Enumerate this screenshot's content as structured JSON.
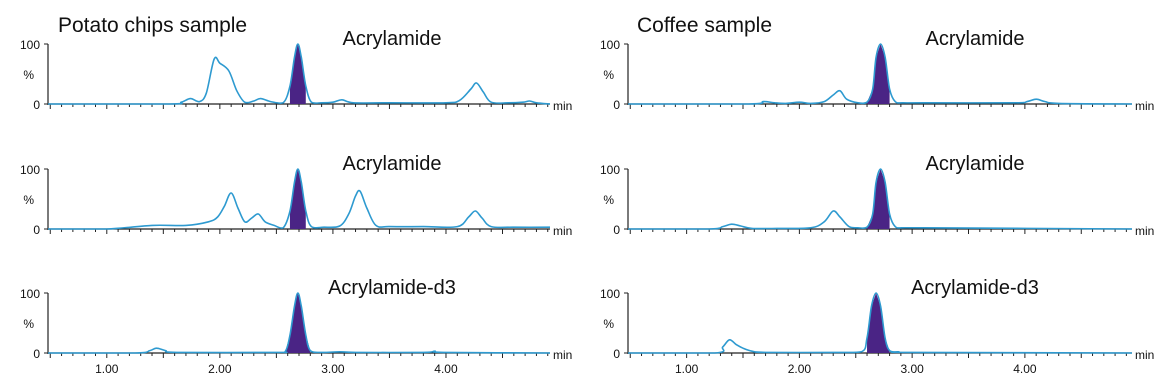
{
  "colors": {
    "trace": "#2e9ad0",
    "peak_fill": "#4a2485",
    "axis": "#222222",
    "text": "#111111"
  },
  "column_titles": [
    "Potato chips sample",
    "Coffee sample"
  ],
  "chart_data": [
    {
      "type": "line",
      "panel": "potato-1",
      "title": "Potato chips sample",
      "label": "Acrylamide",
      "xlabel": "min",
      "ylabel": "%",
      "xlim": [
        0.48,
        4.92
      ],
      "ylim": [
        0,
        100
      ],
      "yticks": [
        0,
        100
      ],
      "xtick_labels": [],
      "grid": false,
      "shaded_peak": [
        2.58,
        2.8
      ],
      "series": [
        {
          "x": [
            0.48,
            1.55,
            1.66,
            1.74,
            1.82,
            1.88,
            1.95,
            2.0,
            2.08,
            2.15,
            2.22,
            2.3,
            2.36,
            2.45,
            2.56,
            2.62,
            2.66,
            2.69,
            2.72,
            2.76,
            2.81,
            2.9,
            3.0,
            3.08,
            3.18,
            3.5,
            4.0,
            4.12,
            4.22,
            4.27,
            4.33,
            4.4,
            4.55,
            4.68,
            4.74,
            4.8,
            4.92
          ],
          "y": [
            0,
            0,
            3,
            9,
            4,
            18,
            75,
            68,
            55,
            22,
            3,
            5,
            9,
            4,
            2,
            30,
            78,
            100,
            78,
            30,
            3,
            2,
            3,
            7,
            2,
            2,
            2,
            6,
            25,
            35,
            20,
            3,
            2,
            3,
            5,
            2,
            0
          ]
        }
      ]
    },
    {
      "type": "line",
      "panel": "potato-2",
      "label": "Acrylamide",
      "xlabel": "min",
      "ylabel": "%",
      "xlim": [
        0.48,
        4.92
      ],
      "ylim": [
        0,
        100
      ],
      "yticks": [
        0,
        100
      ],
      "xtick_labels": [],
      "grid": false,
      "shaded_peak": [
        2.58,
        2.8
      ],
      "series": [
        {
          "x": [
            0.48,
            1.0,
            1.4,
            1.7,
            1.9,
            1.98,
            2.04,
            2.1,
            2.16,
            2.22,
            2.28,
            2.34,
            2.4,
            2.48,
            2.56,
            2.62,
            2.66,
            2.69,
            2.72,
            2.76,
            2.81,
            2.92,
            3.06,
            3.14,
            3.2,
            3.24,
            3.3,
            3.38,
            3.5,
            3.8,
            4.1,
            4.2,
            4.26,
            4.32,
            4.4,
            4.6,
            4.92
          ],
          "y": [
            0,
            0,
            6,
            6,
            12,
            20,
            38,
            60,
            35,
            12,
            18,
            25,
            12,
            6,
            2,
            30,
            78,
            100,
            78,
            30,
            4,
            3,
            5,
            25,
            55,
            63,
            35,
            6,
            4,
            4,
            4,
            20,
            30,
            18,
            4,
            3,
            3
          ]
        }
      ]
    },
    {
      "type": "line",
      "panel": "potato-3",
      "label": "Acrylamide-d3",
      "xlabel": "min",
      "ylabel": "%",
      "xlim": [
        0.48,
        4.92
      ],
      "ylim": [
        0,
        100
      ],
      "yticks": [
        0,
        100
      ],
      "xtick_labels": [
        "1.00",
        "2.00",
        "3.00",
        "4.00"
      ],
      "grid": false,
      "shaded_peak": [
        2.58,
        2.8
      ],
      "series": [
        {
          "x": [
            0.48,
            1.25,
            1.38,
            1.44,
            1.52,
            1.62,
            2.5,
            2.58,
            2.62,
            2.66,
            2.69,
            2.72,
            2.76,
            2.8,
            2.9,
            3.06,
            3.2,
            3.8,
            3.9,
            3.98,
            4.92
          ],
          "y": [
            0,
            0,
            4,
            8,
            4,
            1,
            1,
            3,
            30,
            78,
            100,
            78,
            30,
            4,
            1,
            2,
            1,
            1,
            3,
            1,
            0
          ]
        }
      ]
    },
    {
      "type": "line",
      "panel": "coffee-1",
      "title": "Coffee sample",
      "label": "Acrylamide",
      "xlabel": "min",
      "ylabel": "%",
      "xlim": [
        0.48,
        4.95
      ],
      "ylim": [
        0,
        100
      ],
      "yticks": [
        0,
        100
      ],
      "xtick_labels": [],
      "grid": false,
      "shaded_peak": [
        2.6,
        2.82
      ],
      "series": [
        {
          "x": [
            0.48,
            1.55,
            1.68,
            1.78,
            1.88,
            2.0,
            2.1,
            2.22,
            2.3,
            2.36,
            2.42,
            2.52,
            2.6,
            2.65,
            2.68,
            2.72,
            2.76,
            2.8,
            2.85,
            2.92,
            3.1,
            3.9,
            4.02,
            4.1,
            4.18,
            4.3,
            4.95
          ],
          "y": [
            0,
            0,
            4,
            2,
            1,
            3,
            1,
            4,
            15,
            22,
            8,
            2,
            3,
            25,
            78,
            100,
            78,
            25,
            4,
            2,
            2,
            2,
            4,
            8,
            4,
            1,
            0
          ]
        }
      ]
    },
    {
      "type": "line",
      "panel": "coffee-2",
      "label": "Acrylamide",
      "xlabel": "min",
      "ylabel": "%",
      "xlim": [
        0.48,
        4.95
      ],
      "ylim": [
        0,
        100
      ],
      "yticks": [
        0,
        100
      ],
      "xtick_labels": [],
      "grid": false,
      "shaded_peak": [
        2.6,
        2.82
      ],
      "series": [
        {
          "x": [
            0.48,
            1.2,
            1.32,
            1.4,
            1.48,
            1.58,
            1.8,
            2.1,
            2.22,
            2.3,
            2.36,
            2.44,
            2.52,
            2.6,
            2.65,
            2.68,
            2.72,
            2.76,
            2.8,
            2.85,
            2.92,
            3.1,
            4.95
          ],
          "y": [
            0,
            0,
            4,
            8,
            5,
            1,
            1,
            2,
            12,
            30,
            20,
            4,
            2,
            3,
            25,
            78,
            100,
            78,
            25,
            4,
            2,
            2,
            0
          ]
        }
      ]
    },
    {
      "type": "line",
      "panel": "coffee-3",
      "label": "Acrylamide-d3",
      "xlabel": "min",
      "ylabel": "%",
      "xlim": [
        0.48,
        4.95
      ],
      "ylim": [
        0,
        100
      ],
      "yticks": [
        0,
        100
      ],
      "xtick_labels": [
        "1.00",
        "2.00",
        "3.00",
        "4.00"
      ],
      "grid": false,
      "shaded_peak": [
        2.58,
        2.8
      ],
      "series": [
        {
          "x": [
            0.48,
            1.25,
            1.32,
            1.38,
            1.44,
            1.5,
            1.58,
            1.7,
            2.3,
            2.55,
            2.6,
            2.64,
            2.68,
            2.72,
            2.76,
            2.8,
            2.88,
            3.0,
            4.95
          ],
          "y": [
            0,
            0,
            10,
            22,
            14,
            8,
            3,
            1,
            1,
            2,
            25,
            78,
            100,
            78,
            25,
            4,
            2,
            1,
            0
          ]
        }
      ]
    }
  ]
}
